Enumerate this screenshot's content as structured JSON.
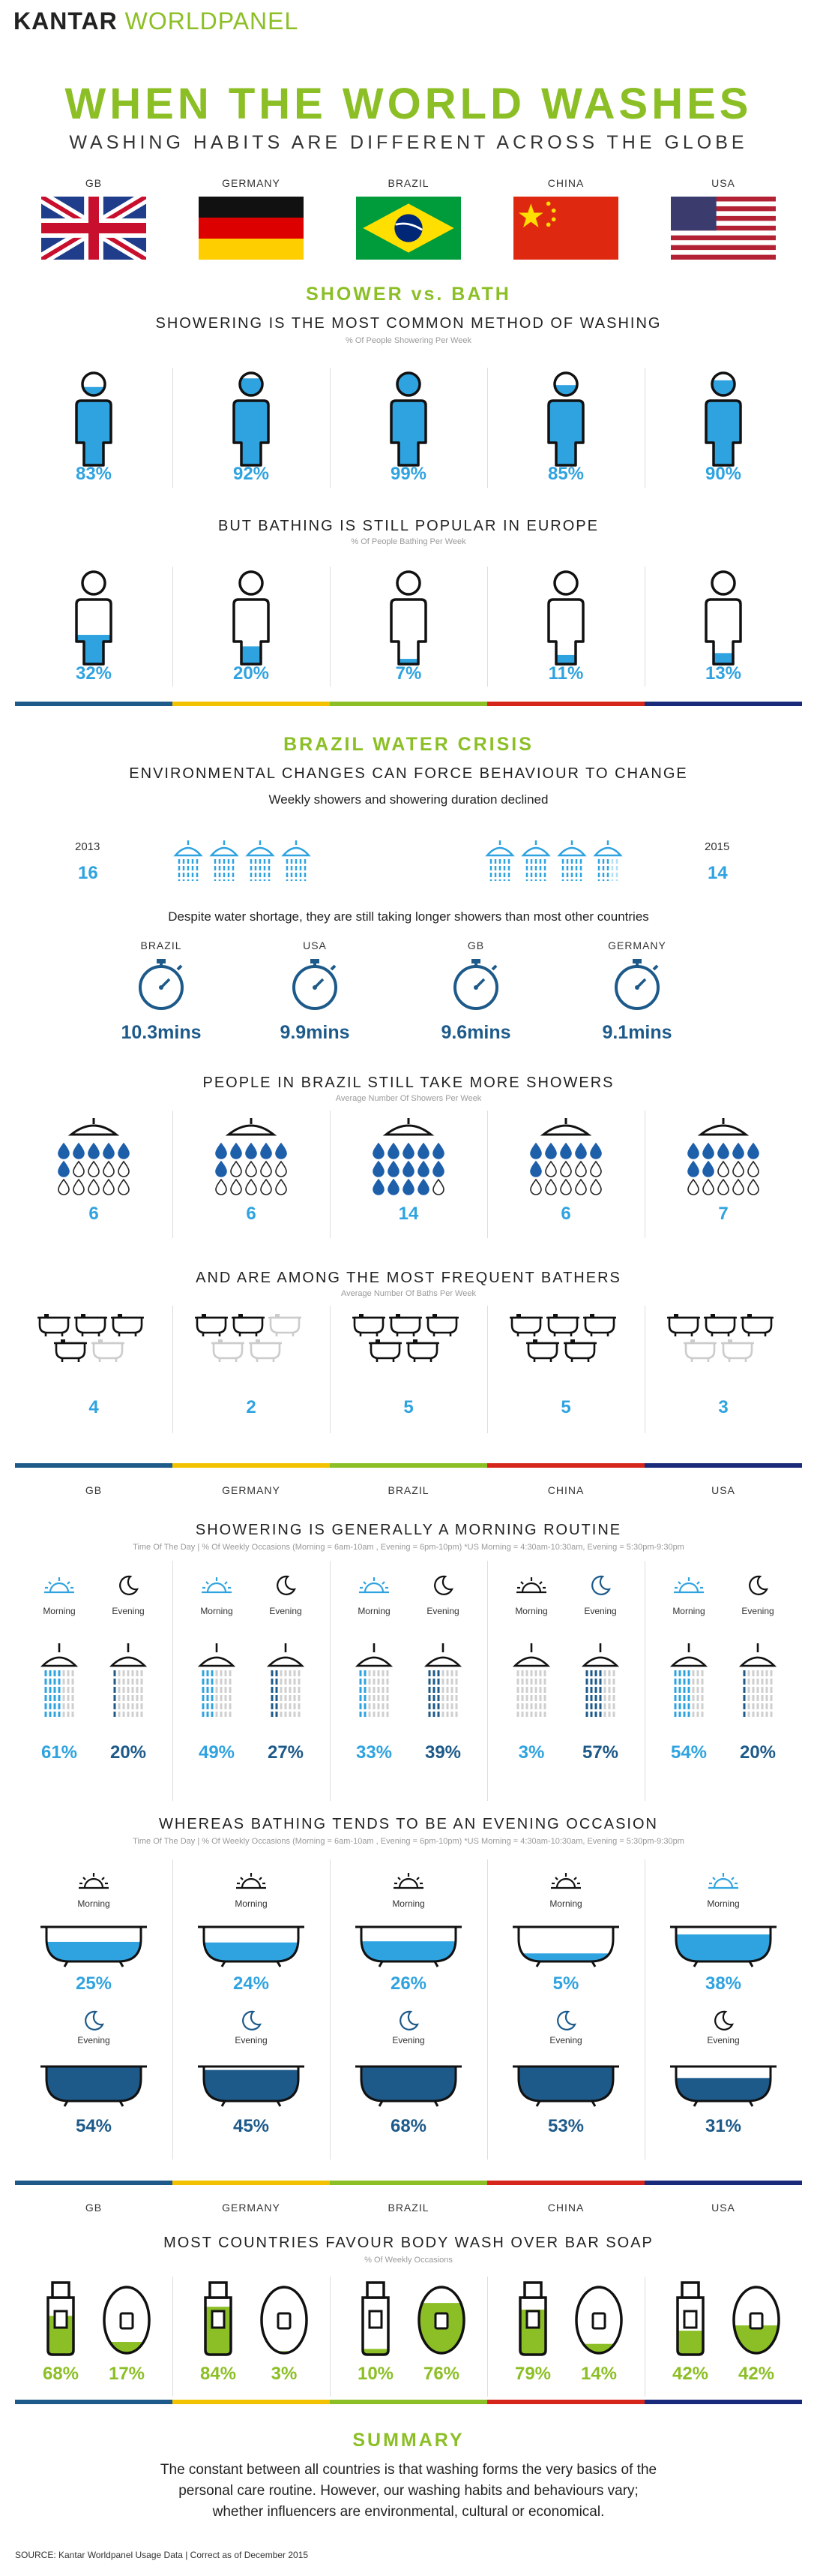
{
  "brand": {
    "kantar": "KANTAR",
    "worldpanel": "WORLDPANEL"
  },
  "header": {
    "title": "WHEN THE WORLD WASHES",
    "subtitle": "WASHING HABITS ARE DIFFERENT ACROSS THE GLOBE"
  },
  "countries": {
    "gb": "GB",
    "germany": "GERMANY",
    "brazil": "BRAZIL",
    "china": "CHINA",
    "usa": "USA"
  },
  "shower_bath": {
    "title": "SHOWER vs. BATH",
    "shower_sub": "SHOWERING IS THE MOST COMMON METHOD OF WASHING",
    "shower_note": "% Of People Showering Per Week",
    "shower_values": [
      "83%",
      "92%",
      "99%",
      "85%",
      "90%"
    ],
    "shower_fill": [
      0.83,
      0.92,
      0.99,
      0.85,
      0.9
    ],
    "bath_sub": "BUT BATHING IS STILL POPULAR IN EUROPE",
    "bath_note": "% Of People Bathing Per Week",
    "bath_values": [
      "32%",
      "20%",
      "7%",
      "11%",
      "13%"
    ],
    "bath_fill": [
      0.32,
      0.2,
      0.07,
      0.11,
      0.13
    ]
  },
  "brazil_crisis": {
    "title": "BRAZIL WATER CRISIS",
    "sub": "ENVIRONMENTAL CHANGES CAN FORCE BEHAVIOUR TO CHANGE",
    "line1": "Weekly showers and showering duration declined",
    "year_a": "2013",
    "value_a": "16",
    "year_b": "2015",
    "value_b": "14",
    "line2": "Despite water shortage, they are still taking longer showers than most other countries",
    "durations": [
      {
        "country": "BRAZIL",
        "value": "10.3mins"
      },
      {
        "country": "USA",
        "value": "9.9mins"
      },
      {
        "country": "GB",
        "value": "9.6mins"
      },
      {
        "country": "GERMANY",
        "value": "9.1mins"
      }
    ],
    "showers_sub": "PEOPLE IN BRAZIL STILL TAKE MORE SHOWERS",
    "showers_note": "Average Number Of Showers Per Week",
    "showers_values": [
      "6",
      "6",
      "14",
      "6",
      "7"
    ],
    "baths_sub": "AND ARE AMONG THE MOST FREQUENT BATHERS",
    "baths_note": "Average Number Of Baths Per Week",
    "baths_values": [
      "4",
      "2",
      "5",
      "5",
      "3"
    ]
  },
  "morning": {
    "sub": "SHOWERING IS GENERALLY A MORNING ROUTINE",
    "note": "Time Of The Day | % Of Weekly Occasions (Morning = 6am-10am , Evening = 6pm-10pm) *US Morning = 4:30am-10:30am, Evening = 5:30pm-9:30pm",
    "morning_label": "Morning",
    "evening_label": "Evening",
    "morning_values": [
      "61%",
      "49%",
      "33%",
      "3%",
      "54%"
    ],
    "evening_values": [
      "20%",
      "27%",
      "39%",
      "57%",
      "20%"
    ]
  },
  "evening_bath": {
    "sub": "WHEREAS BATHING TENDS TO BE AN EVENING OCCASION",
    "note": "Time Of The Day | % Of Weekly Occasions (Morning = 6am-10am , Evening = 6pm-10pm) *US Morning = 4:30am-10:30am, Evening = 5:30pm-9:30pm",
    "morning_label": "Morning",
    "evening_label": "Evening",
    "morning_values": [
      "25%",
      "24%",
      "26%",
      "5%",
      "38%"
    ],
    "evening_values": [
      "54%",
      "45%",
      "68%",
      "53%",
      "31%"
    ]
  },
  "soap": {
    "sub": "MOST COUNTRIES FAVOUR BODY WASH OVER BAR SOAP",
    "note": "% Of Weekly Occasions",
    "bodywash_values": [
      "68%",
      "84%",
      "10%",
      "79%",
      "42%"
    ],
    "bodywash_fill": [
      0.68,
      0.84,
      0.1,
      0.79,
      0.42
    ],
    "barsoap_values": [
      "17%",
      "3%",
      "76%",
      "14%",
      "42%"
    ],
    "barsoap_fill": [
      0.17,
      0.03,
      0.76,
      0.14,
      0.42
    ]
  },
  "summary": {
    "title": "SUMMARY",
    "text1": "The constant between all countries is that washing forms the very basics of the",
    "text2": "personal care routine. However, our washing habits and behaviours vary;",
    "text3": "whether influencers are environmental, cultural or economical."
  },
  "source": "SOURCE: Kantar Worldpanel Usage Data | Correct as of December 2015",
  "colors": {
    "green": "#8cbf26",
    "blue": "#2fa3e0",
    "navy": "#1d5a8a",
    "yellow": "#f2c200",
    "red": "#d6261c",
    "darkblue": "#1a2a7a"
  }
}
